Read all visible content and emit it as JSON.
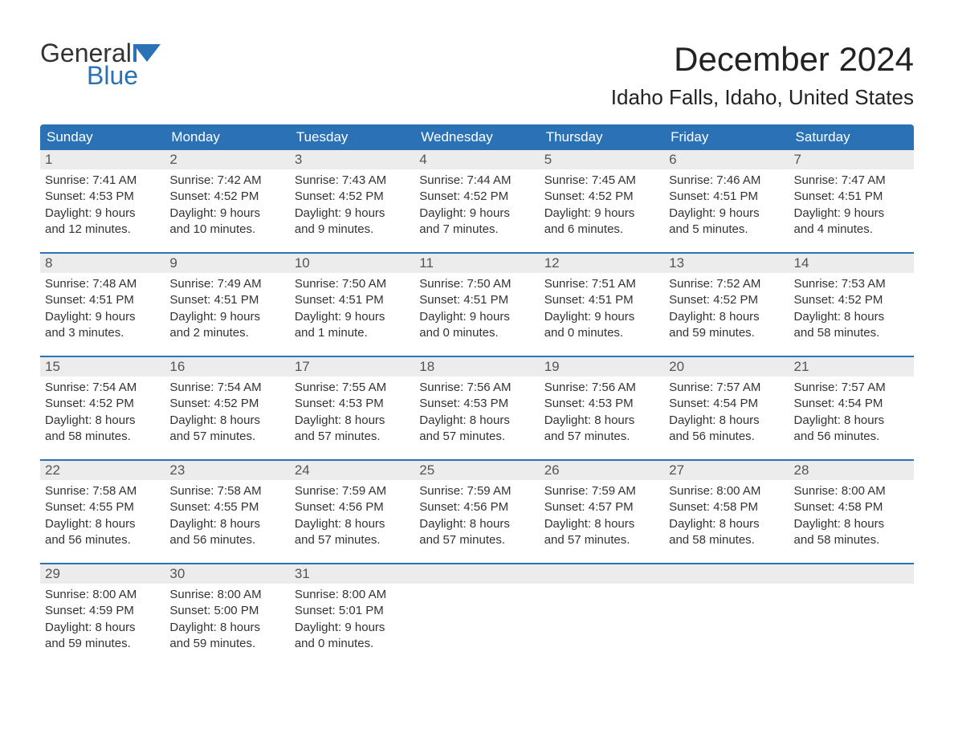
{
  "logo": {
    "word1": "General",
    "word2": "Blue",
    "accent_color": "#2a72b5"
  },
  "title": "December 2024",
  "location": "Idaho Falls, Idaho, United States",
  "colors": {
    "header_bg": "#2a72b5",
    "header_text": "#ffffff",
    "daynum_bg": "#ececec",
    "week_border": "#2a72b5",
    "body_text": "#333333"
  },
  "day_headers": [
    "Sunday",
    "Monday",
    "Tuesday",
    "Wednesday",
    "Thursday",
    "Friday",
    "Saturday"
  ],
  "weeks": [
    [
      {
        "n": "1",
        "sunrise": "Sunrise: 7:41 AM",
        "sunset": "Sunset: 4:53 PM",
        "dl1": "Daylight: 9 hours",
        "dl2": "and 12 minutes."
      },
      {
        "n": "2",
        "sunrise": "Sunrise: 7:42 AM",
        "sunset": "Sunset: 4:52 PM",
        "dl1": "Daylight: 9 hours",
        "dl2": "and 10 minutes."
      },
      {
        "n": "3",
        "sunrise": "Sunrise: 7:43 AM",
        "sunset": "Sunset: 4:52 PM",
        "dl1": "Daylight: 9 hours",
        "dl2": "and 9 minutes."
      },
      {
        "n": "4",
        "sunrise": "Sunrise: 7:44 AM",
        "sunset": "Sunset: 4:52 PM",
        "dl1": "Daylight: 9 hours",
        "dl2": "and 7 minutes."
      },
      {
        "n": "5",
        "sunrise": "Sunrise: 7:45 AM",
        "sunset": "Sunset: 4:52 PM",
        "dl1": "Daylight: 9 hours",
        "dl2": "and 6 minutes."
      },
      {
        "n": "6",
        "sunrise": "Sunrise: 7:46 AM",
        "sunset": "Sunset: 4:51 PM",
        "dl1": "Daylight: 9 hours",
        "dl2": "and 5 minutes."
      },
      {
        "n": "7",
        "sunrise": "Sunrise: 7:47 AM",
        "sunset": "Sunset: 4:51 PM",
        "dl1": "Daylight: 9 hours",
        "dl2": "and 4 minutes."
      }
    ],
    [
      {
        "n": "8",
        "sunrise": "Sunrise: 7:48 AM",
        "sunset": "Sunset: 4:51 PM",
        "dl1": "Daylight: 9 hours",
        "dl2": "and 3 minutes."
      },
      {
        "n": "9",
        "sunrise": "Sunrise: 7:49 AM",
        "sunset": "Sunset: 4:51 PM",
        "dl1": "Daylight: 9 hours",
        "dl2": "and 2 minutes."
      },
      {
        "n": "10",
        "sunrise": "Sunrise: 7:50 AM",
        "sunset": "Sunset: 4:51 PM",
        "dl1": "Daylight: 9 hours",
        "dl2": "and 1 minute."
      },
      {
        "n": "11",
        "sunrise": "Sunrise: 7:50 AM",
        "sunset": "Sunset: 4:51 PM",
        "dl1": "Daylight: 9 hours",
        "dl2": "and 0 minutes."
      },
      {
        "n": "12",
        "sunrise": "Sunrise: 7:51 AM",
        "sunset": "Sunset: 4:51 PM",
        "dl1": "Daylight: 9 hours",
        "dl2": "and 0 minutes."
      },
      {
        "n": "13",
        "sunrise": "Sunrise: 7:52 AM",
        "sunset": "Sunset: 4:52 PM",
        "dl1": "Daylight: 8 hours",
        "dl2": "and 59 minutes."
      },
      {
        "n": "14",
        "sunrise": "Sunrise: 7:53 AM",
        "sunset": "Sunset: 4:52 PM",
        "dl1": "Daylight: 8 hours",
        "dl2": "and 58 minutes."
      }
    ],
    [
      {
        "n": "15",
        "sunrise": "Sunrise: 7:54 AM",
        "sunset": "Sunset: 4:52 PM",
        "dl1": "Daylight: 8 hours",
        "dl2": "and 58 minutes."
      },
      {
        "n": "16",
        "sunrise": "Sunrise: 7:54 AM",
        "sunset": "Sunset: 4:52 PM",
        "dl1": "Daylight: 8 hours",
        "dl2": "and 57 minutes."
      },
      {
        "n": "17",
        "sunrise": "Sunrise: 7:55 AM",
        "sunset": "Sunset: 4:53 PM",
        "dl1": "Daylight: 8 hours",
        "dl2": "and 57 minutes."
      },
      {
        "n": "18",
        "sunrise": "Sunrise: 7:56 AM",
        "sunset": "Sunset: 4:53 PM",
        "dl1": "Daylight: 8 hours",
        "dl2": "and 57 minutes."
      },
      {
        "n": "19",
        "sunrise": "Sunrise: 7:56 AM",
        "sunset": "Sunset: 4:53 PM",
        "dl1": "Daylight: 8 hours",
        "dl2": "and 57 minutes."
      },
      {
        "n": "20",
        "sunrise": "Sunrise: 7:57 AM",
        "sunset": "Sunset: 4:54 PM",
        "dl1": "Daylight: 8 hours",
        "dl2": "and 56 minutes."
      },
      {
        "n": "21",
        "sunrise": "Sunrise: 7:57 AM",
        "sunset": "Sunset: 4:54 PM",
        "dl1": "Daylight: 8 hours",
        "dl2": "and 56 minutes."
      }
    ],
    [
      {
        "n": "22",
        "sunrise": "Sunrise: 7:58 AM",
        "sunset": "Sunset: 4:55 PM",
        "dl1": "Daylight: 8 hours",
        "dl2": "and 56 minutes."
      },
      {
        "n": "23",
        "sunrise": "Sunrise: 7:58 AM",
        "sunset": "Sunset: 4:55 PM",
        "dl1": "Daylight: 8 hours",
        "dl2": "and 56 minutes."
      },
      {
        "n": "24",
        "sunrise": "Sunrise: 7:59 AM",
        "sunset": "Sunset: 4:56 PM",
        "dl1": "Daylight: 8 hours",
        "dl2": "and 57 minutes."
      },
      {
        "n": "25",
        "sunrise": "Sunrise: 7:59 AM",
        "sunset": "Sunset: 4:56 PM",
        "dl1": "Daylight: 8 hours",
        "dl2": "and 57 minutes."
      },
      {
        "n": "26",
        "sunrise": "Sunrise: 7:59 AM",
        "sunset": "Sunset: 4:57 PM",
        "dl1": "Daylight: 8 hours",
        "dl2": "and 57 minutes."
      },
      {
        "n": "27",
        "sunrise": "Sunrise: 8:00 AM",
        "sunset": "Sunset: 4:58 PM",
        "dl1": "Daylight: 8 hours",
        "dl2": "and 58 minutes."
      },
      {
        "n": "28",
        "sunrise": "Sunrise: 8:00 AM",
        "sunset": "Sunset: 4:58 PM",
        "dl1": "Daylight: 8 hours",
        "dl2": "and 58 minutes."
      }
    ],
    [
      {
        "n": "29",
        "sunrise": "Sunrise: 8:00 AM",
        "sunset": "Sunset: 4:59 PM",
        "dl1": "Daylight: 8 hours",
        "dl2": "and 59 minutes."
      },
      {
        "n": "30",
        "sunrise": "Sunrise: 8:00 AM",
        "sunset": "Sunset: 5:00 PM",
        "dl1": "Daylight: 8 hours",
        "dl2": "and 59 minutes."
      },
      {
        "n": "31",
        "sunrise": "Sunrise: 8:00 AM",
        "sunset": "Sunset: 5:01 PM",
        "dl1": "Daylight: 9 hours",
        "dl2": "and 0 minutes."
      },
      {
        "empty": true
      },
      {
        "empty": true
      },
      {
        "empty": true
      },
      {
        "empty": true
      }
    ]
  ]
}
